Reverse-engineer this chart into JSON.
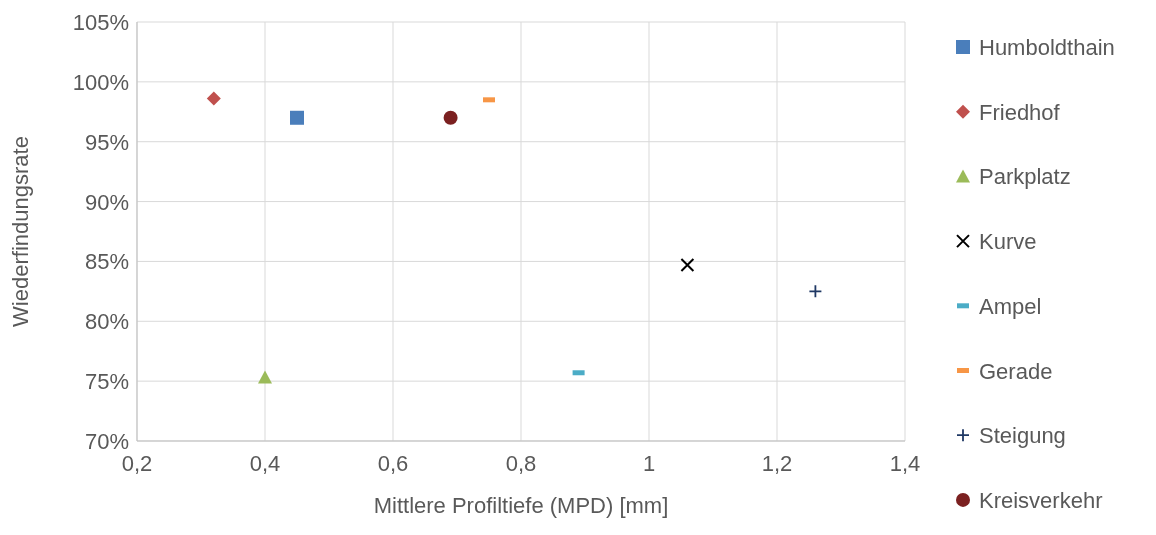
{
  "chart_data": {
    "type": "scatter",
    "xlabel": "Mittlere Profiltiefe (MPD) [mm]",
    "ylabel": "Wiederfindungsrate",
    "xlim": [
      0.2,
      1.4
    ],
    "xticks": [
      {
        "value": 0.2,
        "label": "0,2"
      },
      {
        "value": 0.4,
        "label": "0,4"
      },
      {
        "value": 0.6,
        "label": "0,6"
      },
      {
        "value": 0.8,
        "label": "0,8"
      },
      1,
      {
        "value": 1.2,
        "label": "1,2"
      },
      {
        "value": 1.4,
        "label": "1,4"
      }
    ],
    "ylim": [
      70,
      105
    ],
    "yticks": [
      {
        "value": 70,
        "label": "70%"
      },
      {
        "value": 75,
        "label": "75%"
      },
      {
        "value": 80,
        "label": "80%"
      },
      {
        "value": 85,
        "label": "85%"
      },
      {
        "value": 90,
        "label": "90%"
      },
      {
        "value": 95,
        "label": "95%"
      },
      {
        "value": 100,
        "label": "100%"
      },
      {
        "value": 105,
        "label": "105%"
      }
    ],
    "grid": true,
    "legend": "right",
    "series": [
      {
        "name": "Humboldthain",
        "color": "#4a7ebb",
        "marker": "square",
        "x": [
          0.45
        ],
        "values": [
          97
        ]
      },
      {
        "name": "Friedhof",
        "color": "#c0504d",
        "marker": "diamond",
        "x": [
          0.32
        ],
        "values": [
          98.6
        ]
      },
      {
        "name": "Parkplatz",
        "color": "#9bbb59",
        "marker": "triangle",
        "x": [
          0.4
        ],
        "values": [
          75.3
        ]
      },
      {
        "name": "Kurve",
        "color": "#000000",
        "marker": "cross",
        "x": [
          1.06
        ],
        "values": [
          84.7
        ]
      },
      {
        "name": "Ampel",
        "color": "#4bacc6",
        "x": [
          0.89
        ],
        "values": [
          75.7
        ]
      },
      {
        "name": "Gerade",
        "color": "#f79646",
        "x": [
          0.75
        ],
        "values": [
          98.5
        ]
      },
      {
        "name": "Steigung",
        "color": "#1f3864",
        "marker": "plus",
        "x": [
          1.26
        ],
        "values": [
          82.5
        ]
      },
      {
        "name": "Kreisverkehr",
        "color": "#7b2020",
        "marker": "circle",
        "x": [
          0.69
        ],
        "values": [
          97
        ]
      }
    ]
  }
}
